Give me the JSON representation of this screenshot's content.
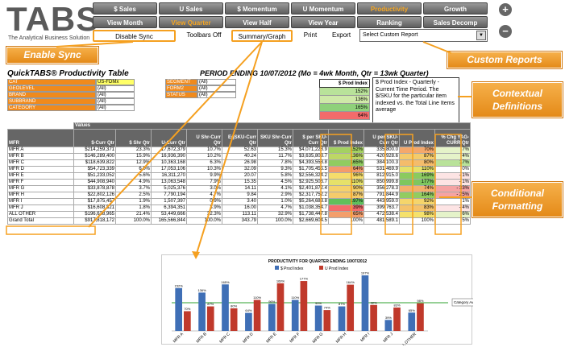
{
  "logo": {
    "word": "TABS",
    "tagline": "The Analytical Business Solution"
  },
  "nav_row1": [
    "$ Sales",
    "U Sales",
    "$ Momentum",
    "U Momentum",
    "Productivity",
    "Growth"
  ],
  "nav_row2": [
    "View Month",
    "View Quarter",
    "View Half",
    "View Year",
    "Ranking",
    "Sales Decomp"
  ],
  "active_nav": [
    "Productivity",
    "View Quarter"
  ],
  "toolbar": {
    "disable_sync": "Disable Sync",
    "toolbars_off": "Toolbars Off",
    "summary_graph": "Summary/Graph",
    "print": "Print",
    "export": "Export",
    "report_select": "Select Custom Report"
  },
  "round_buttons": {
    "plus": "+",
    "minus": "−"
  },
  "callouts": {
    "enable_sync": "Enable Sync",
    "custom_reports": "Custom Reports",
    "contextual": "Contextual Definitions",
    "conditional": "Conditional Formatting"
  },
  "title": "QuickTABS® Productivity Table",
  "period": "PERIOD ENDING 10/07/2012 (Mo = 4wk Month, Qtr = 13wk Quarter)",
  "filters_left": [
    {
      "label": "CAT",
      "value": "US-FDMx"
    },
    {
      "label": "GEOLEVEL",
      "value": "(All)"
    },
    {
      "label": "BRAND",
      "value": "(All)"
    },
    {
      "label": "SUBBRAND",
      "value": "(All)"
    },
    {
      "label": "CATEGORY",
      "value": "(All)"
    }
  ],
  "filters_right": [
    {
      "label": "SEGMENT",
      "value": "(All)"
    },
    {
      "label": "FORM2",
      "value": "(All)"
    },
    {
      "label": "STATUS",
      "value": "(All)"
    }
  ],
  "mini_table": {
    "header": "$ Prod Index",
    "values": [
      "152%",
      "136%",
      "165%",
      "64%"
    ]
  },
  "definition": "$ Prod Index - Quarterly - Current Time Period. The $/SKU for the particular item indexed vs. the Total Line Items average",
  "table": {
    "values_label": "Values",
    "row_header": "MFR",
    "columns": [
      "$-Curr Qtr",
      "$ Shr Qtr",
      "U-Curr Qtr",
      "U Shr-Curr Qtr",
      "EqSKU-Curr Qtr",
      "SKU Shr-Curr Qtr",
      "$ per SKU-Curr Qtr",
      "$ Prod Index",
      "U per SKU-Curr Qtr",
      "U Prod Index",
      "% Chg YAG-CURR Qtr"
    ],
    "rows": [
      [
        "MFR A",
        "$214,259,371",
        "23.3%",
        "17,672,379",
        "10.7%",
        "52.63",
        "15.3%",
        "$4,071,228.9",
        "152%",
        "335,800.0",
        "70%",
        "7%"
      ],
      [
        "MFR B",
        "$146,289,400",
        "15.9%",
        "16,936,390",
        "10.2%",
        "40.24",
        "11.7%",
        "$3,635,803.7",
        "136%",
        "420,928.6",
        "87%",
        "4%"
      ],
      [
        "MFR C",
        "$118,639,822",
        "12.9%",
        "10,363,168",
        "6.3%",
        "26.98",
        "7.8%",
        "$4,393,558.8",
        "165%",
        "384,100.3",
        "80%",
        "17%"
      ],
      [
        "MFR D",
        "$54,723,339",
        "6.0%",
        "17,053,106",
        "10.3%",
        "32.09",
        "9.3%",
        "$1,705,455.5",
        "64%",
        "531,469.9",
        "110%",
        "0%"
      ],
      [
        "MFR E",
        "$51,233,052",
        "5.6%",
        "16,311,270",
        "9.9%",
        "20.07",
        "5.8%",
        "$2,556,324.2",
        "96%",
        "812,915.0",
        "169%",
        "- 1%"
      ],
      [
        "MFR F",
        "$44,908,940",
        "4.9%",
        "13,063,548",
        "7.9%",
        "15.35",
        "4.5%",
        "$2,925,506.7",
        "110%",
        "850,999.8",
        "177%",
        "- 1%"
      ],
      [
        "MFR G",
        "$33,878,878",
        "3.7%",
        "5,025,376",
        "3.0%",
        "14.11",
        "4.1%",
        "$2,401,872.4",
        "90%",
        "356,278.3",
        "74%",
        "- 33%"
      ],
      [
        "MFR H",
        "$22,802,126",
        "2.5%",
        "7,790,194",
        "4.7%",
        "9.84",
        "2.9%",
        "$2,317,752.2",
        "87%",
        "791,844.9",
        "164%",
        "- 25%"
      ],
      [
        "MFR I",
        "$17,875,457",
        "1.9%",
        "1,507,397",
        "0.9%",
        "3.40",
        "1.0%",
        "$5,264,683.8",
        "197%",
        "443,959.0",
        "92%",
        "1%"
      ],
      [
        "MFR J",
        "$16,608,821",
        "1.8%",
        "6,394,351",
        "3.9%",
        "16.00",
        "4.7%",
        "$1,038,354.7",
        "39%",
        "399,763.7",
        "83%",
        "- 4%"
      ],
      [
        "ALL OTHER",
        "$196,638,965",
        "21.4%",
        "53,449,666",
        "32.3%",
        "113.11",
        "32.9%",
        "$1,738,447.8",
        "65%",
        "472,538.4",
        "98%",
        "6%"
      ],
      [
        "Grand Total",
        "$917,818,172",
        "100.0%",
        "165,566,844",
        "100.0%",
        "343.79",
        "100.0%",
        "$2,669,604.5",
        "100%",
        "481,589.1",
        "100%",
        "5%"
      ]
    ]
  },
  "chart_data": {
    "type": "bar",
    "title": "PRODUCTIVITY FOR QUARTER ENDING 10/07/2012",
    "categories": [
      "MFR A",
      "MFR B",
      "MFR C",
      "MFR D",
      "MFR E",
      "MFR F",
      "MFR G",
      "MFR H",
      "MFR I",
      "MFR J",
      "ALL OTHER"
    ],
    "series": [
      {
        "name": "$ Prod Index",
        "values": [
          152,
          136,
          165,
          64,
          96,
          110,
          90,
          87,
          197,
          39,
          65
        ],
        "color": "#3f6fb6"
      },
      {
        "name": "U Prod Index",
        "values": [
          70,
          87,
          80,
          110,
          169,
          177,
          74,
          164,
          92,
          83,
          98
        ],
        "color": "#c0392b"
      }
    ],
    "ylim": [
      0,
      200
    ],
    "reference_line": {
      "label": "Category Avg.",
      "value": 100,
      "color": "#2ca02c"
    },
    "legend": "top"
  },
  "colors": {
    "orange": "#f08a1c",
    "green_cf": "#6fbf5a",
    "yellow_cf": "#f5e56b",
    "red_cf": "#f26b6b"
  }
}
